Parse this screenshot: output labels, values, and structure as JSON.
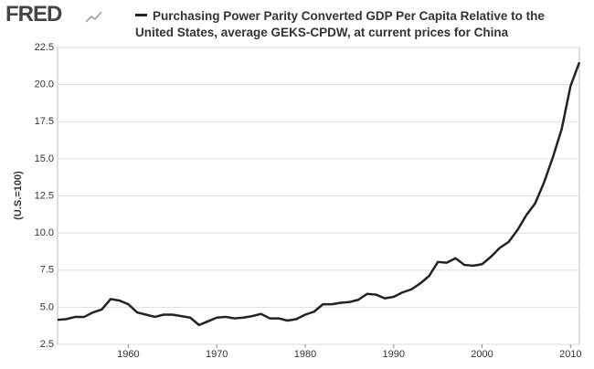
{
  "logo": "FRED",
  "chart_data": {
    "type": "line",
    "y_label": "(U.S.=100)",
    "x": [
      1952,
      1953,
      1954,
      1955,
      1956,
      1957,
      1958,
      1959,
      1960,
      1961,
      1962,
      1963,
      1964,
      1965,
      1966,
      1967,
      1968,
      1969,
      1970,
      1971,
      1972,
      1973,
      1974,
      1975,
      1976,
      1977,
      1978,
      1979,
      1980,
      1981,
      1982,
      1983,
      1984,
      1985,
      1986,
      1987,
      1988,
      1989,
      1990,
      1991,
      1992,
      1993,
      1994,
      1995,
      1996,
      1997,
      1998,
      1999,
      2000,
      2001,
      2002,
      2003,
      2004,
      2005,
      2006,
      2007,
      2008,
      2009,
      2010,
      2011
    ],
    "series": [
      {
        "name": "Purchasing Power Parity Converted GDP Per Capita Relative to the United States, average GEKS-CPDW, at current prices for China",
        "color": "#222222",
        "values": [
          4.15,
          4.2,
          4.35,
          4.35,
          4.65,
          4.85,
          5.55,
          5.45,
          5.2,
          4.65,
          4.5,
          4.35,
          4.5,
          4.5,
          4.4,
          4.3,
          3.8,
          4.05,
          4.3,
          4.35,
          4.25,
          4.3,
          4.4,
          4.55,
          4.25,
          4.25,
          4.1,
          4.2,
          4.5,
          4.7,
          5.2,
          5.2,
          5.3,
          5.35,
          5.5,
          5.9,
          5.85,
          5.6,
          5.7,
          6.0,
          6.2,
          6.6,
          7.1,
          8.05,
          8.0,
          8.3,
          7.85,
          7.8,
          7.9,
          8.4,
          9.0,
          9.4,
          10.2,
          11.2,
          12.0,
          13.4,
          15.1,
          17.0,
          19.9,
          21.5
        ]
      }
    ],
    "xlim": [
      1952,
      2011
    ],
    "ylim": [
      2.5,
      22.5
    ],
    "xticks": [
      1960,
      1970,
      1980,
      1990,
      2000,
      2010
    ],
    "yticks": [
      2.5,
      {
        "value": 5,
        "label": "5.0"
      },
      7.5,
      {
        "value": 10,
        "label": "10.0"
      },
      12.5,
      {
        "value": 15,
        "label": "15.0"
      },
      17.5,
      {
        "value": 20,
        "label": "20.0"
      },
      22.5
    ],
    "grid": true
  }
}
